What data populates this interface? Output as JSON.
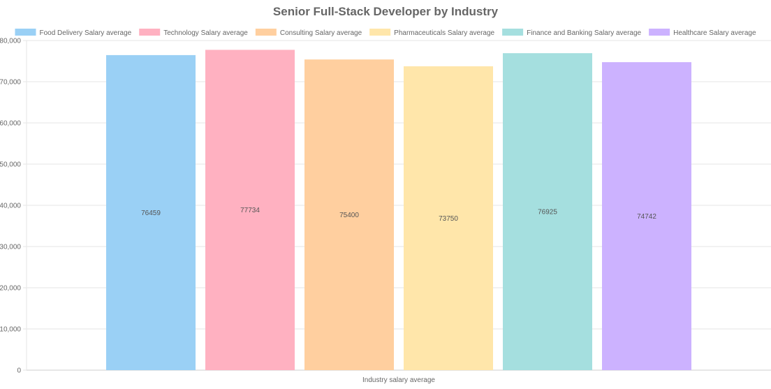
{
  "chart_data": {
    "type": "bar",
    "title": "Senior Full-Stack Developer by Industry",
    "xlabel": "Industry salary average",
    "ylabel": "",
    "categories": [
      "Industry salary average"
    ],
    "series": [
      {
        "name": "Food Delivery Salary average",
        "values": [
          76459
        ],
        "color": "#9ad0f5",
        "label": "76459"
      },
      {
        "name": "Technology Salary average",
        "values": [
          77734
        ],
        "color": "#ffb1c1",
        "label": "77734"
      },
      {
        "name": "Consulting Salary average",
        "values": [
          75400
        ],
        "color": "#ffcf9f",
        "label": "75400"
      },
      {
        "name": "Pharmaceuticals Salary average",
        "values": [
          73750
        ],
        "color": "#ffe6aa",
        "label": "73750"
      },
      {
        "name": "Finance and Banking Salary average",
        "values": [
          76925
        ],
        "color": "#a5dfdf",
        "label": "76925"
      },
      {
        "name": "Healthcare Salary average",
        "values": [
          74742
        ],
        "color": "#ccb2ff",
        "label": "74742"
      }
    ],
    "ylim": [
      0,
      80000
    ],
    "yticks": [
      0,
      10000,
      20000,
      30000,
      40000,
      50000,
      60000,
      70000,
      80000
    ],
    "ytick_labels": [
      "0",
      "10,000",
      "20,000",
      "30,000",
      "40,000",
      "50,000",
      "60,000",
      "70,000",
      "80,000"
    ],
    "grid": true,
    "legend_position": "top"
  }
}
